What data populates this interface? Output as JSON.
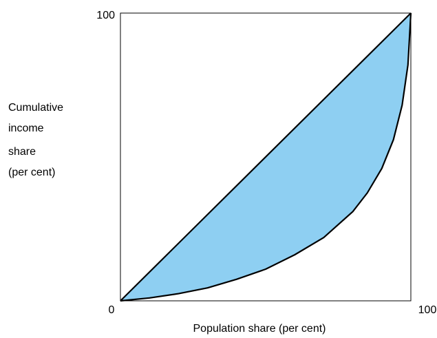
{
  "chart_data": {
    "type": "lorenz",
    "xlabel": "Population share (per cent)",
    "ylabel": [
      "Cumulative",
      "income",
      "share",
      "(per cent)"
    ],
    "xlim": [
      0,
      100
    ],
    "ylim": [
      0,
      100
    ],
    "xticks": [
      100
    ],
    "yticks": [
      0,
      100
    ],
    "series": [
      {
        "color": "#000000",
        "fill": "#8ecff2",
        "x": [
          0,
          10,
          20,
          30,
          40,
          50,
          60,
          70,
          80,
          85,
          90,
          94,
          97,
          99,
          100
        ],
        "values": [
          0,
          1,
          2.5,
          4.5,
          7.5,
          11,
          16,
          22,
          31,
          37.5,
          46,
          56,
          68,
          82,
          100
        ]
      },
      {
        "color": "#000000",
        "x": [
          0,
          100
        ],
        "values": [
          0,
          100
        ]
      }
    ]
  }
}
